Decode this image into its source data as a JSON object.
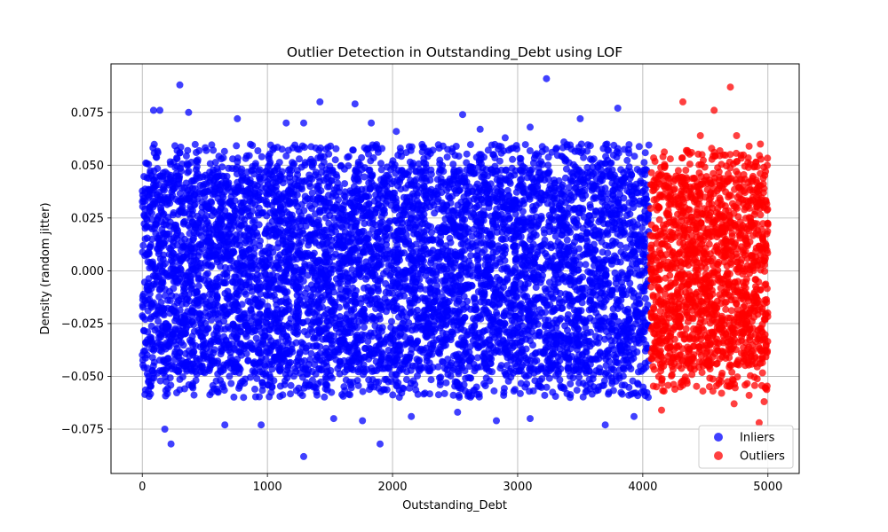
{
  "chart_data": {
    "type": "scatter",
    "title": "Outlier Detection in Outstanding_Debt using LOF",
    "xlabel": "Outstanding_Debt",
    "ylabel": "Density (random jitter)",
    "xlim": [
      -250,
      5250
    ],
    "ylim": [
      -0.096,
      0.098
    ],
    "xticks": [
      0,
      1000,
      2000,
      3000,
      4000,
      5000
    ],
    "xtick_labels": [
      "0",
      "1000",
      "2000",
      "3000",
      "4000",
      "5000"
    ],
    "yticks": [
      -0.075,
      -0.05,
      -0.025,
      0.0,
      0.025,
      0.05,
      0.075
    ],
    "ytick_labels": [
      "−0.075",
      "−0.050",
      "−0.025",
      "0.000",
      "0.025",
      "0.050",
      "0.075"
    ],
    "grid": true,
    "legend_position": "lower-right",
    "series": [
      {
        "name": "Inliers",
        "color": "#0000ff",
        "x_range": [
          0,
          4050
        ],
        "dense_band": [
          -0.048,
          0.048
        ],
        "extreme_points": [
          [
            300,
            0.088
          ],
          [
            3230,
            0.091
          ],
          [
            1420,
            0.08
          ],
          [
            1700,
            0.079
          ],
          [
            3800,
            0.077
          ],
          [
            90,
            0.076
          ],
          [
            140,
            0.076
          ],
          [
            370,
            0.075
          ],
          [
            2560,
            0.074
          ],
          [
            3500,
            0.072
          ],
          [
            760,
            0.072
          ],
          [
            1150,
            0.07
          ],
          [
            1290,
            0.07
          ],
          [
            1830,
            0.07
          ],
          [
            2030,
            0.066
          ],
          [
            2700,
            0.067
          ],
          [
            3370,
            0.061
          ],
          [
            3510,
            0.06
          ],
          [
            2900,
            0.063
          ],
          [
            3100,
            0.068
          ],
          [
            230,
            -0.082
          ],
          [
            1290,
            -0.088
          ],
          [
            1900,
            -0.082
          ],
          [
            180,
            -0.075
          ],
          [
            3700,
            -0.073
          ],
          [
            950,
            -0.073
          ],
          [
            2830,
            -0.071
          ],
          [
            3100,
            -0.07
          ],
          [
            1760,
            -0.071
          ],
          [
            3930,
            -0.069
          ],
          [
            660,
            -0.073
          ],
          [
            1530,
            -0.07
          ],
          [
            2150,
            -0.069
          ],
          [
            2520,
            -0.067
          ],
          [
            3420,
            -0.06
          ]
        ]
      },
      {
        "name": "Outliers",
        "color": "#ff0000",
        "x_range": [
          4060,
          5000
        ],
        "dense_band": [
          -0.045,
          0.045
        ],
        "extreme_points": [
          [
            4700,
            0.087
          ],
          [
            4320,
            0.08
          ],
          [
            4570,
            0.076
          ],
          [
            4460,
            0.064
          ],
          [
            4750,
            0.064
          ],
          [
            4550,
            0.058
          ],
          [
            4850,
            0.059
          ],
          [
            4940,
            0.06
          ],
          [
            4390,
            0.056
          ],
          [
            4220,
            0.053
          ],
          [
            4930,
            -0.072
          ],
          [
            4150,
            -0.066
          ],
          [
            4730,
            -0.063
          ],
          [
            4630,
            -0.058
          ],
          [
            4970,
            -0.062
          ],
          [
            4170,
            -0.057
          ],
          [
            4480,
            -0.057
          ],
          [
            4850,
            -0.059
          ],
          [
            4560,
            -0.057
          ],
          [
            4300,
            -0.055
          ]
        ]
      }
    ]
  }
}
